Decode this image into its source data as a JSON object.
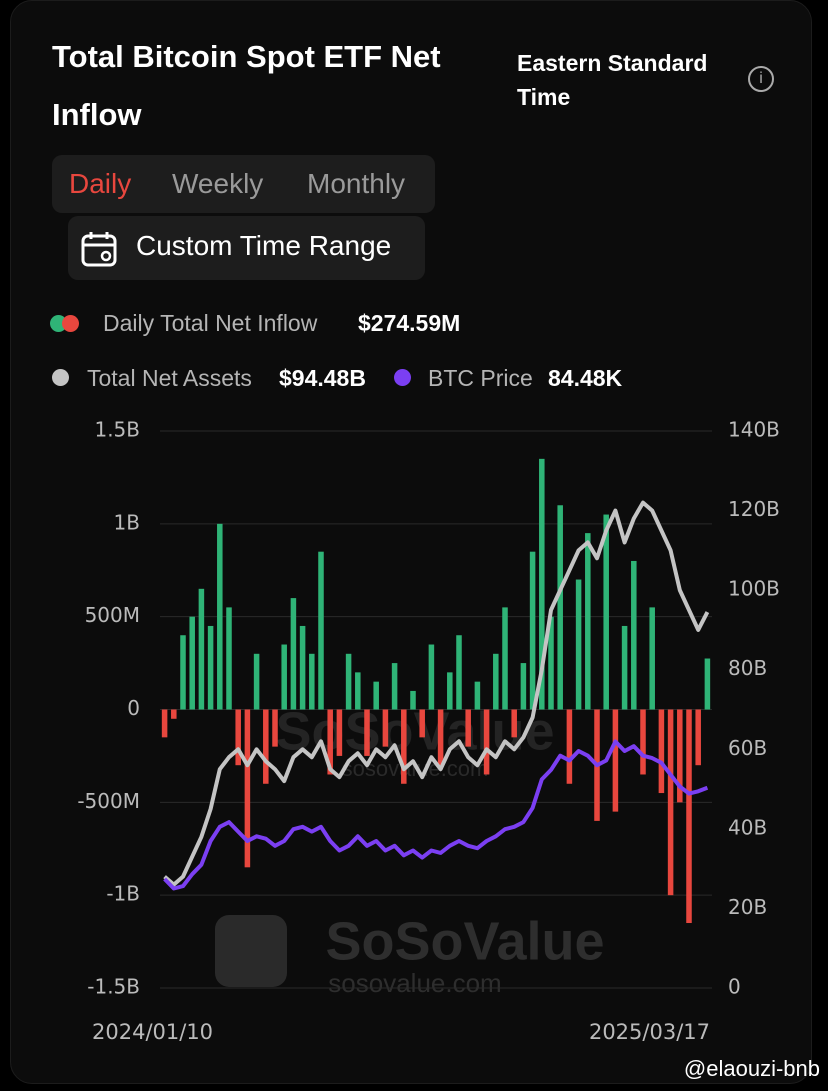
{
  "header": {
    "title": "Total Bitcoin Spot ETF Net Inflow",
    "timezone": "Eastern Standard Time",
    "tabs": [
      "Daily",
      "Weekly",
      "Monthly"
    ],
    "custom_range": "Custom Time Range"
  },
  "legend": {
    "inflow_value": "$274.59M",
    "assets_value": "$94.48B",
    "price_value": "84.48K"
  },
  "watermark": {
    "brand": "SoSoValue",
    "url": "sosovalue.com"
  },
  "credit": "@elaouzi-bnb",
  "chart_data": {
    "type": "bar-line",
    "categories": [
      "2024/01/10",
      null,
      null,
      null,
      null,
      null,
      null,
      null,
      null,
      null,
      null,
      null,
      null,
      null,
      null,
      null,
      null,
      null,
      null,
      null,
      null,
      null,
      null,
      null,
      null,
      null,
      null,
      null,
      null,
      null,
      null,
      null,
      null,
      null,
      null,
      null,
      null,
      null,
      null,
      null,
      null,
      null,
      null,
      null,
      null,
      null,
      null,
      null,
      null,
      null,
      null,
      null,
      null,
      null,
      null,
      null,
      null,
      null,
      null,
      "2025/03/17"
    ],
    "series": [
      {
        "name": "Daily Total Net Inflow",
        "type": "bar",
        "color": "#2fb477",
        "negative_color": "#e8473e",
        "values": [
          -150,
          -50,
          400,
          500,
          650,
          450,
          1000,
          550,
          -300,
          -850,
          300,
          -400,
          -200,
          350,
          600,
          450,
          300,
          850,
          -350,
          -250,
          300,
          200,
          -250,
          150,
          -200,
          250,
          -400,
          100,
          -150,
          350,
          -300,
          200,
          400,
          -200,
          150,
          -350,
          300,
          550,
          -150,
          250,
          850,
          1350,
          500,
          1100,
          -400,
          700,
          950,
          -600,
          1050,
          -550,
          450,
          800,
          -350,
          550,
          -450,
          -1000,
          -500,
          -1150,
          -300,
          274.59
        ]
      },
      {
        "name": "Total Net Assets",
        "type": "line",
        "axis": "y2",
        "color": "#c4c4c4",
        "values": [
          28,
          26,
          28,
          33,
          38,
          45,
          55,
          58,
          60,
          56,
          60,
          57,
          55,
          52,
          58,
          60,
          58,
          62,
          55,
          53,
          57,
          59,
          56,
          60,
          58,
          61,
          55,
          57,
          53,
          58,
          55,
          60,
          62,
          58,
          56,
          60,
          58,
          62,
          60,
          63,
          68,
          80,
          95,
          100,
          105,
          110,
          112,
          108,
          115,
          120,
          112,
          118,
          122,
          120,
          115,
          110,
          100,
          95,
          90,
          94.48
        ]
      },
      {
        "name": "BTC Price",
        "type": "line",
        "axis": "y3",
        "color": "#7b3ff2",
        "values": [
          46,
          42,
          43,
          48,
          52,
          62,
          68,
          70,
          66,
          62,
          64,
          63,
          60,
          62,
          67,
          68,
          66,
          68,
          62,
          58,
          60,
          64,
          60,
          62,
          58,
          60,
          56,
          58,
          55,
          58,
          57,
          60,
          62,
          60,
          59,
          62,
          64,
          67,
          68,
          70,
          76,
          88,
          92,
          98,
          96,
          100,
          98,
          94,
          96,
          104,
          100,
          102,
          98,
          97,
          95,
          90,
          85,
          82,
          83,
          84.48
        ]
      }
    ],
    "ylim": [
      -1500,
      1500
    ],
    "yticks": [
      {
        "value": 1500,
        "label": "1.5B"
      },
      {
        "value": 1000,
        "label": "1B"
      },
      {
        "value": 500,
        "label": "500M"
      },
      0,
      {
        "value": -500,
        "label": "-500M"
      },
      {
        "value": -1000,
        "label": "-1B"
      },
      {
        "value": -1500,
        "label": "-1.5B"
      }
    ],
    "y2lim": [
      0,
      140
    ],
    "y2ticks": [
      {
        "value": 140,
        "label": "140B"
      },
      {
        "value": 120,
        "label": "120B"
      },
      {
        "value": 100,
        "label": "100B"
      },
      {
        "value": 80,
        "label": "80B"
      },
      {
        "value": 60,
        "label": "60B"
      },
      {
        "value": 40,
        "label": "40B"
      },
      {
        "value": 20,
        "label": "20B"
      },
      0
    ],
    "y3lim": [
      0,
      235
    ],
    "grid": true
  }
}
